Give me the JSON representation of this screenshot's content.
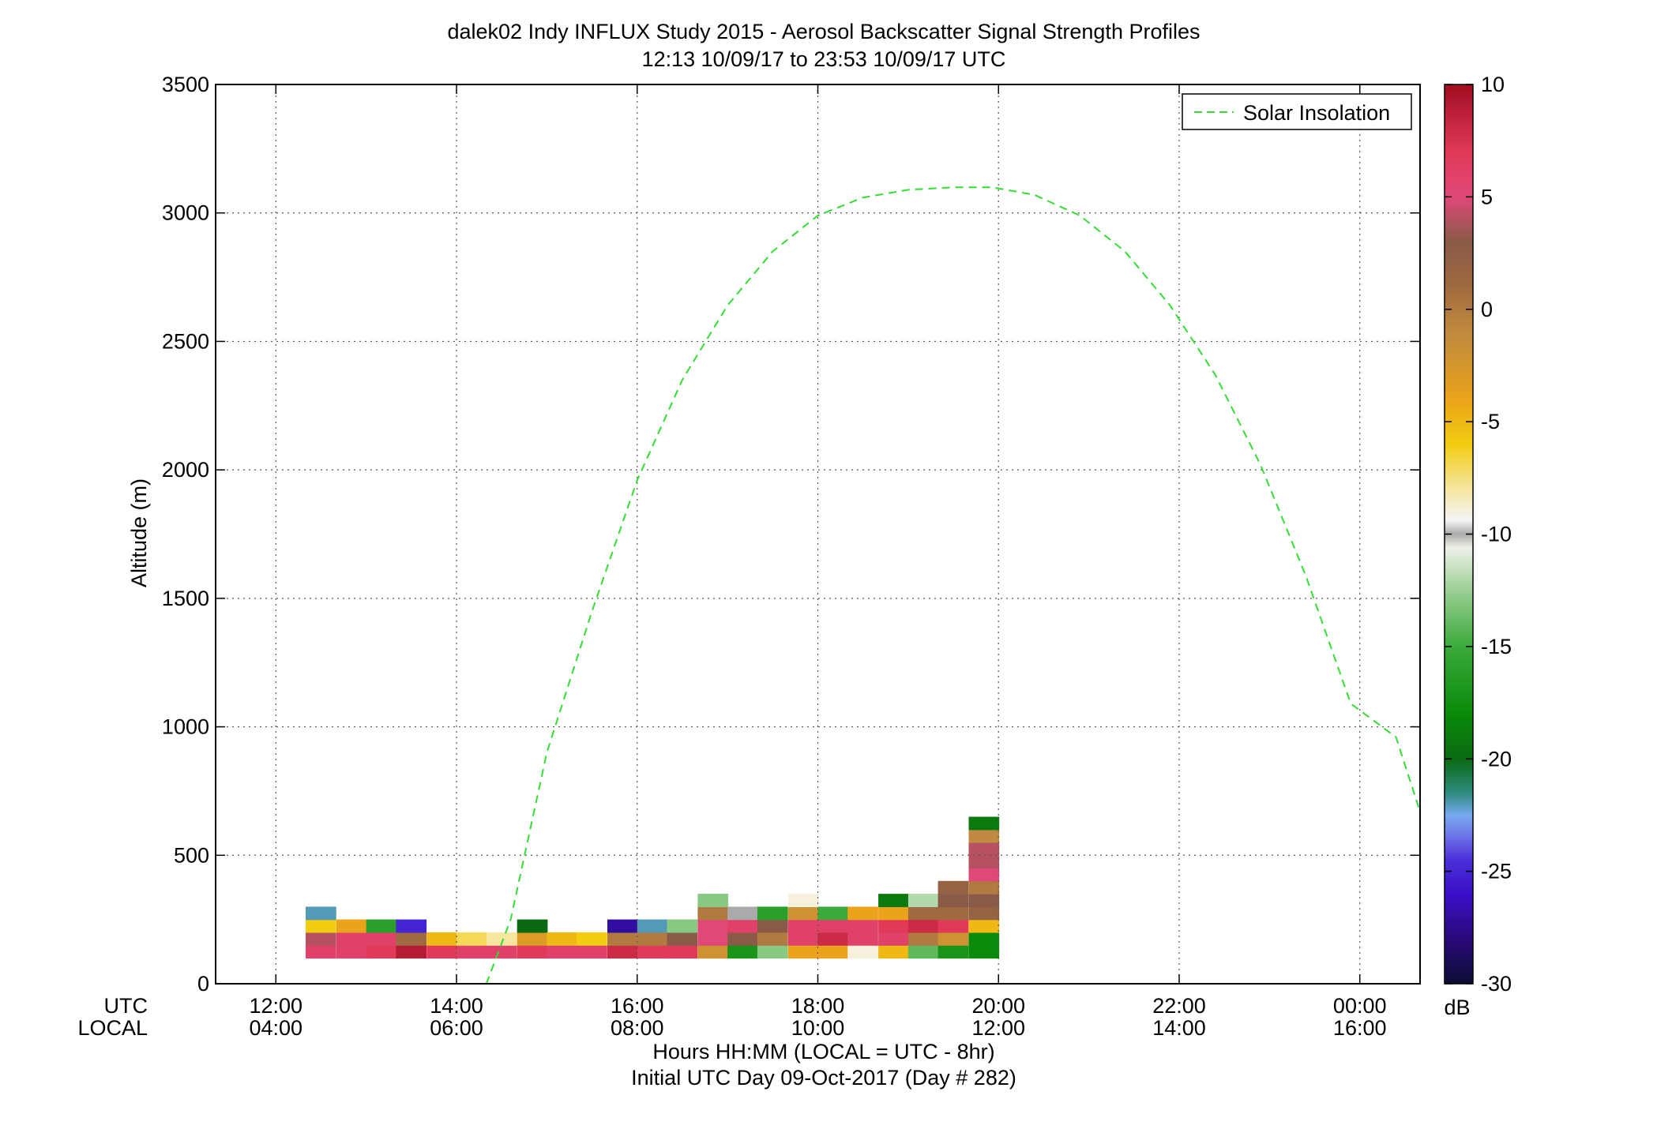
{
  "title": {
    "line1": "dalek02 Indy INFLUX Study 2015 - Aerosol Backscatter Signal Strength Profiles",
    "line2": "12:13 10/09/17 to 23:53 10/09/17  UTC"
  },
  "axes": {
    "ylabel": "Altitude (m)",
    "xlabel_line1": "Hours HH:MM  (LOCAL = UTC - 8hr)",
    "xlabel_line2": "Initial UTC Day 09-Oct-2017 (Day # 282)",
    "utc_row_label": "UTC",
    "local_row_label": "LOCAL",
    "colorbar_unit": "dB"
  },
  "legend": {
    "solar_label": "Solar Insolation",
    "solar_color": "#33dd33"
  },
  "chart_data": {
    "type": "heatmap",
    "title": "dalek02 Indy INFLUX Study 2015 - Aerosol Backscatter Signal Strength Profiles",
    "subtitle": "12:13 10/09/17 to 23:53 10/09/17  UTC",
    "xlabel": "Hours HH:MM  (LOCAL = UTC - 8hr)",
    "ylabel": "Altitude (m)",
    "xlim_utc_hours": [
      11.333,
      24.667
    ],
    "ylim": [
      0,
      3500
    ],
    "y_ticks": [
      0,
      500,
      1000,
      1500,
      2000,
      2500,
      3000,
      3500
    ],
    "x_ticks_utc_hours": [
      12,
      14,
      16,
      18,
      20,
      22,
      24
    ],
    "x_tick_labels_utc": [
      "12:00",
      "14:00",
      "16:00",
      "18:00",
      "20:00",
      "22:00",
      "00:00"
    ],
    "x_tick_labels_local": [
      "04:00",
      "06:00",
      "08:00",
      "10:00",
      "12:00",
      "14:00",
      "16:00"
    ],
    "grid": true,
    "legend_position": "top-right",
    "colorbar": {
      "label": "dB",
      "range": [
        -30,
        10
      ],
      "ticks": [
        10,
        5,
        0,
        -5,
        -10,
        -15,
        -20,
        -25,
        -30
      ]
    },
    "profile_time_step_hours": 0.333,
    "profile_altitude_step_m": 50,
    "solar_insolation": {
      "name": "Solar Insolation",
      "style": "dashed",
      "points_utc_hours_vs_y": [
        [
          14.33,
          0
        ],
        [
          14.6,
          250
        ],
        [
          15.0,
          900
        ],
        [
          15.5,
          1450
        ],
        [
          16.0,
          1960
        ],
        [
          16.5,
          2350
        ],
        [
          17.0,
          2640
        ],
        [
          17.5,
          2850
        ],
        [
          18.0,
          2990
        ],
        [
          18.5,
          3060
        ],
        [
          19.0,
          3090
        ],
        [
          19.5,
          3100
        ],
        [
          19.93,
          3100
        ],
        [
          20.4,
          3070
        ],
        [
          20.9,
          2990
        ],
        [
          21.4,
          2850
        ],
        [
          21.9,
          2640
        ],
        [
          22.4,
          2370
        ],
        [
          22.9,
          2020
        ],
        [
          23.4,
          1590
        ],
        [
          23.9,
          1090
        ],
        [
          24.4,
          960
        ],
        [
          24.667,
          670
        ]
      ]
    },
    "profiles_note": "Each cell: [utc_hours_start, altitude_bottom_m, altitude_top_m, dB]",
    "cells": [
      [
        12.33,
        100,
        150,
        6
      ],
      [
        12.33,
        150,
        200,
        4
      ],
      [
        12.33,
        200,
        250,
        -6
      ],
      [
        12.33,
        250,
        300,
        -22
      ],
      [
        12.67,
        100,
        150,
        6
      ],
      [
        12.67,
        150,
        200,
        6
      ],
      [
        12.67,
        200,
        250,
        -4
      ],
      [
        13.0,
        100,
        150,
        7
      ],
      [
        13.0,
        150,
        200,
        6
      ],
      [
        13.0,
        200,
        250,
        -16
      ],
      [
        13.33,
        100,
        150,
        9
      ],
      [
        13.33,
        150,
        200,
        1
      ],
      [
        13.33,
        200,
        250,
        -25
      ],
      [
        13.67,
        100,
        150,
        7
      ],
      [
        13.67,
        150,
        200,
        -5
      ],
      [
        14.0,
        100,
        150,
        6
      ],
      [
        14.0,
        150,
        200,
        -7
      ],
      [
        14.33,
        100,
        150,
        6
      ],
      [
        14.33,
        150,
        200,
        -8
      ],
      [
        14.67,
        100,
        150,
        7
      ],
      [
        14.67,
        150,
        200,
        -3
      ],
      [
        14.67,
        200,
        250,
        -20
      ],
      [
        15.0,
        100,
        150,
        6
      ],
      [
        15.0,
        150,
        200,
        -5
      ],
      [
        15.33,
        100,
        150,
        6
      ],
      [
        15.33,
        150,
        200,
        -6
      ],
      [
        15.67,
        100,
        150,
        8
      ],
      [
        15.67,
        150,
        200,
        0
      ],
      [
        15.67,
        200,
        250,
        -27
      ],
      [
        16.0,
        100,
        150,
        7
      ],
      [
        16.0,
        150,
        200,
        0
      ],
      [
        16.0,
        200,
        250,
        -22
      ],
      [
        16.33,
        100,
        150,
        7
      ],
      [
        16.33,
        150,
        200,
        3
      ],
      [
        16.33,
        200,
        250,
        -13
      ],
      [
        16.67,
        100,
        150,
        -2
      ],
      [
        16.67,
        150,
        200,
        5
      ],
      [
        16.67,
        200,
        250,
        5
      ],
      [
        16.67,
        250,
        300,
        0
      ],
      [
        16.67,
        300,
        350,
        -13
      ],
      [
        17.0,
        100,
        150,
        -17
      ],
      [
        17.0,
        150,
        200,
        3
      ],
      [
        17.0,
        200,
        250,
        6
      ],
      [
        17.0,
        250,
        300,
        -10
      ],
      [
        17.33,
        100,
        150,
        -13
      ],
      [
        17.33,
        150,
        200,
        0
      ],
      [
        17.33,
        200,
        250,
        3
      ],
      [
        17.33,
        250,
        300,
        -16
      ],
      [
        17.67,
        100,
        150,
        -4
      ],
      [
        17.67,
        150,
        200,
        6
      ],
      [
        17.67,
        200,
        250,
        6
      ],
      [
        17.67,
        250,
        300,
        -2
      ],
      [
        17.67,
        300,
        350,
        -9
      ],
      [
        18.0,
        100,
        150,
        -4
      ],
      [
        18.0,
        150,
        200,
        8
      ],
      [
        18.0,
        200,
        250,
        6
      ],
      [
        18.0,
        250,
        300,
        -15
      ],
      [
        18.33,
        100,
        150,
        -9
      ],
      [
        18.33,
        150,
        200,
        6
      ],
      [
        18.33,
        200,
        250,
        6
      ],
      [
        18.33,
        250,
        300,
        -4
      ],
      [
        18.67,
        100,
        150,
        -5
      ],
      [
        18.67,
        150,
        200,
        6
      ],
      [
        18.67,
        200,
        250,
        7
      ],
      [
        18.67,
        250,
        300,
        -4
      ],
      [
        18.67,
        300,
        350,
        -19
      ],
      [
        19.0,
        100,
        150,
        -14
      ],
      [
        19.0,
        150,
        200,
        0
      ],
      [
        19.0,
        200,
        250,
        8
      ],
      [
        19.0,
        250,
        300,
        1
      ],
      [
        19.0,
        300,
        350,
        -12
      ],
      [
        19.33,
        100,
        150,
        -17
      ],
      [
        19.33,
        150,
        200,
        -2
      ],
      [
        19.33,
        200,
        250,
        7
      ],
      [
        19.33,
        250,
        300,
        1
      ],
      [
        19.33,
        300,
        350,
        3
      ],
      [
        19.33,
        350,
        400,
        2
      ],
      [
        19.67,
        100,
        150,
        -18
      ],
      [
        19.67,
        150,
        200,
        -18
      ],
      [
        19.67,
        200,
        250,
        -5
      ],
      [
        19.67,
        250,
        300,
        2
      ],
      [
        19.67,
        300,
        350,
        3
      ],
      [
        19.67,
        350,
        400,
        0
      ],
      [
        19.67,
        400,
        450,
        5
      ],
      [
        19.67,
        450,
        550,
        4
      ],
      [
        19.67,
        550,
        600,
        -1
      ],
      [
        19.67,
        600,
        650,
        -19
      ]
    ]
  }
}
